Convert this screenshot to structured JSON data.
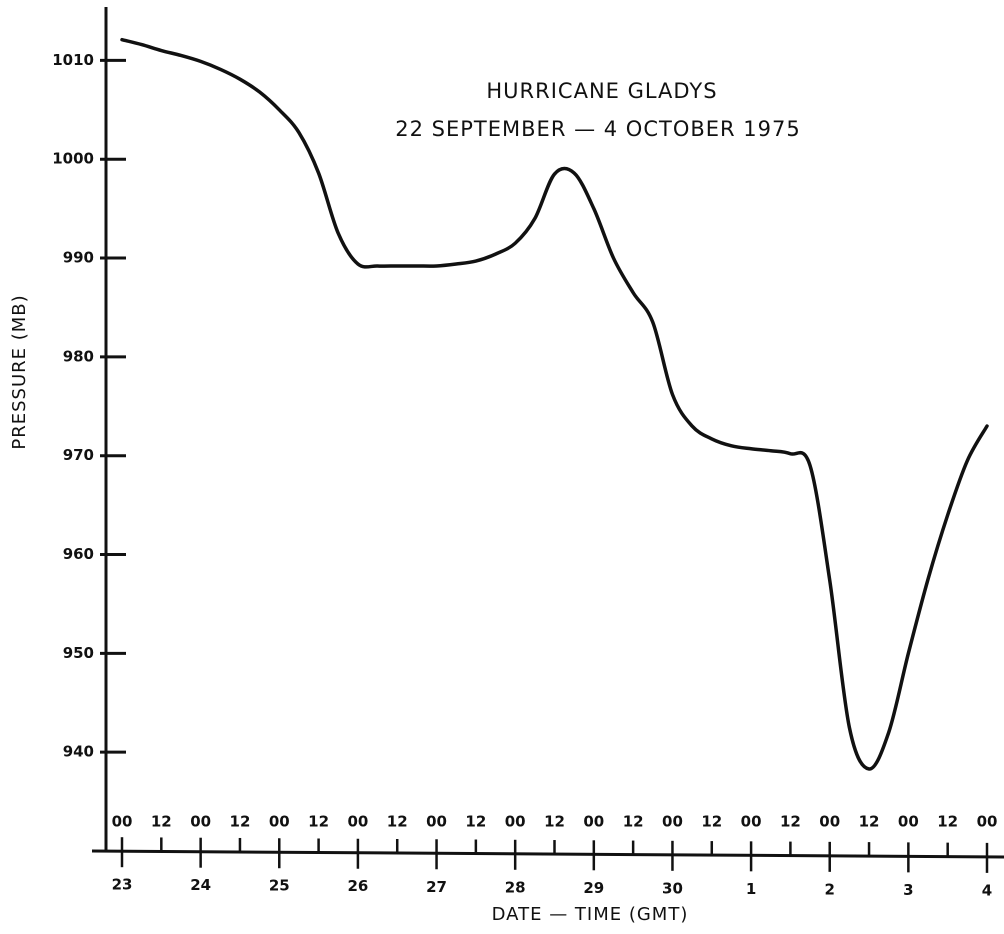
{
  "chart_data": {
    "type": "line",
    "title_lines": [
      "HURRICANE GLADYS",
      "22 SEPTEMBER — 4 OCTOBER 1975"
    ],
    "x_label": "DATE — TIME (GMT)",
    "y_label": "PRESSURE (MB)",
    "time_labels": [
      "00",
      "12",
      "00",
      "12",
      "00",
      "12",
      "00",
      "12",
      "00",
      "12",
      "00",
      "12",
      "00",
      "12",
      "00",
      "12",
      "00",
      "12",
      "00",
      "12",
      "00",
      "12",
      "00"
    ],
    "day_labels": [
      "23",
      "24",
      "25",
      "26",
      "27",
      "28",
      "29",
      "30",
      "1",
      "2",
      "3",
      "4"
    ],
    "series": [
      {
        "name": "Pressure",
        "color": "#111111",
        "values": [
          1012.1,
          1011.6,
          1011.0,
          1010.5,
          1009.9,
          1009.1,
          1008.1,
          1006.8,
          1005.0,
          1002.7,
          998.6,
          992.5,
          989.4,
          989.2,
          989.2,
          989.2,
          989.2,
          989.4,
          989.7,
          990.4,
          991.5,
          994.0,
          998.5,
          998.6,
          995.0,
          990.0,
          986.5,
          983.5,
          976.2,
          973.0,
          971.7,
          971.0,
          970.7,
          970.5,
          970.2,
          969.0,
          957.4,
          942.5,
          938.3,
          942.0,
          950.0,
          957.5,
          964.0,
          969.5,
          973.0
        ]
      }
    ],
    "ylim": [
      930,
      1015
    ],
    "yticks": [
      940,
      950,
      960,
      970,
      980,
      990,
      1000,
      1010
    ]
  }
}
